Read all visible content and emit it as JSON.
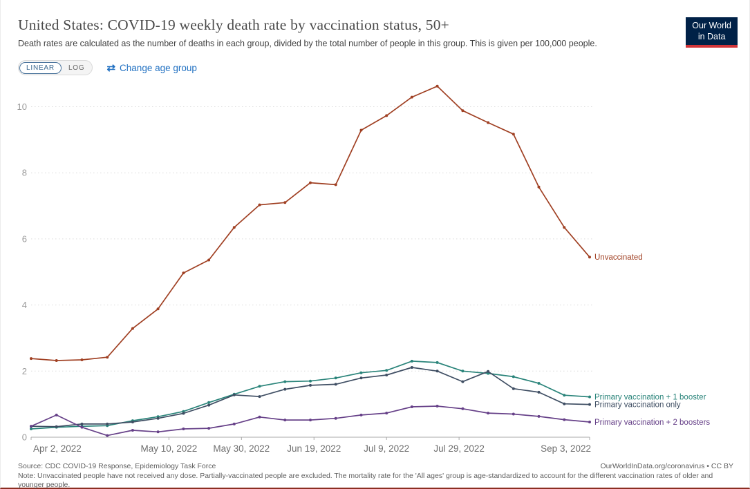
{
  "header": {
    "title": "United States: COVID-19 weekly death rate by vaccination status, 50+",
    "subtitle": "Death rates are calculated as the number of deaths in each group, divided by the total number of people in this group. This is given per 100,000 people."
  },
  "controls": {
    "linear_label": "LINEAR",
    "log_label": "LOG",
    "change_age_group_label": "Change age group",
    "swap_icon_glyph": "⇄",
    "active_scale": "LINEAR"
  },
  "logo": {
    "line1": "Our World",
    "line2": "in Data",
    "bg_color": "#002147",
    "bar_color": "#d13438"
  },
  "chart_data": {
    "type": "line",
    "title": "United States: COVID-19 weekly death rate by vaccination status, 50+",
    "unit": "deaths per 100,000 people",
    "grid": "horizontal dotted",
    "legend_position": "right end-of-line labels",
    "ylim": [
      0,
      10.7
    ],
    "y_ticks": [
      0,
      2,
      4,
      6,
      8,
      10
    ],
    "x_tick_labels": [
      "Apr 2, 2022",
      "May 10, 2022",
      "May 30, 2022",
      "Jun 19, 2022",
      "Jul 9, 2022",
      "Jul 29, 2022",
      "Sep 3, 2022"
    ],
    "x_tick_days": [
      0,
      38,
      58,
      78,
      98,
      118,
      154
    ],
    "x_range_days": 154,
    "dates": [
      "Apr 2, 2022",
      "Apr 9, 2022",
      "Apr 16, 2022",
      "Apr 23, 2022",
      "Apr 30, 2022",
      "May 7, 2022",
      "May 14, 2022",
      "May 21, 2022",
      "May 28, 2022",
      "Jun 4, 2022",
      "Jun 11, 2022",
      "Jun 18, 2022",
      "Jun 25, 2022",
      "Jul 2, 2022",
      "Jul 9, 2022",
      "Jul 16, 2022",
      "Jul 23, 2022",
      "Jul 30, 2022",
      "Aug 6, 2022",
      "Aug 13, 2022",
      "Aug 20, 2022",
      "Aug 27, 2022",
      "Sep 3, 2022"
    ],
    "series": [
      {
        "name": "Unvaccinated",
        "color": "#a04023",
        "values": [
          2.38,
          2.32,
          2.34,
          2.42,
          3.29,
          3.88,
          4.97,
          5.36,
          6.35,
          7.03,
          7.1,
          7.7,
          7.64,
          9.29,
          9.73,
          10.29,
          10.62,
          9.88,
          9.52,
          9.17,
          7.57,
          6.35,
          5.45
        ]
      },
      {
        "name": "Primary vaccination + 1 booster",
        "color": "#2a847a",
        "values": [
          0.25,
          0.3,
          0.33,
          0.35,
          0.5,
          0.62,
          0.78,
          1.05,
          1.3,
          1.54,
          1.68,
          1.7,
          1.79,
          1.95,
          2.02,
          2.3,
          2.26,
          2.0,
          1.93,
          1.83,
          1.63,
          1.27,
          1.22
        ]
      },
      {
        "name": "Primary vaccination only",
        "color": "#3f4e63",
        "values": [
          0.33,
          0.32,
          0.4,
          0.4,
          0.46,
          0.57,
          0.72,
          0.97,
          1.28,
          1.23,
          1.45,
          1.57,
          1.6,
          1.79,
          1.88,
          2.11,
          2.0,
          1.68,
          1.99,
          1.47,
          1.36,
          1.01,
          0.99
        ]
      },
      {
        "name": "Primary vaccination + 2 boosters",
        "color": "#664088",
        "values": [
          0.33,
          0.67,
          0.3,
          0.05,
          0.21,
          0.16,
          0.25,
          0.27,
          0.4,
          0.61,
          0.52,
          0.52,
          0.57,
          0.67,
          0.73,
          0.92,
          0.94,
          0.86,
          0.73,
          0.7,
          0.63,
          0.53,
          0.46
        ]
      }
    ]
  },
  "footer": {
    "source": "Source: CDC COVID-19 Response, Epidemiology Task Force",
    "attribution": "OurWorldInData.org/coronavirus • CC BY",
    "note": "Note: Unvaccinated people have not received any dose. Partially-vaccinated people are excluded. The mortality rate for the 'All ages' group is age-standardized to account for the different vaccination rates of older and younger people."
  }
}
